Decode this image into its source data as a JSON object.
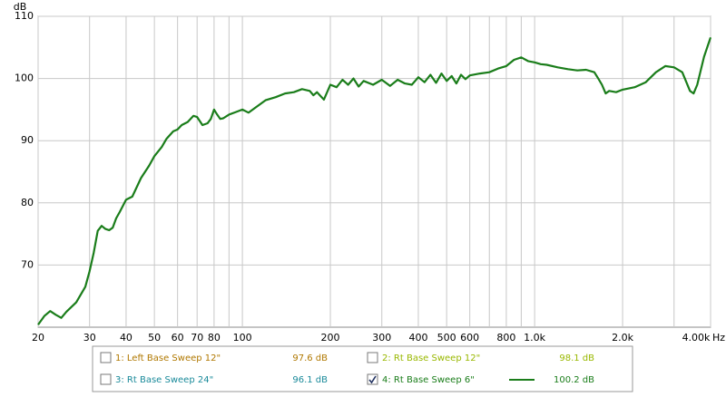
{
  "chart_data": {
    "type": "line",
    "y_unit": "dB",
    "x_unit": "Hz",
    "log_x": true,
    "grid": true,
    "xlim": [
      20,
      4000
    ],
    "ylim": [
      60,
      110
    ],
    "yticks": [
      70,
      80,
      90,
      100,
      110
    ],
    "xticks": [
      20,
      30,
      40,
      50,
      60,
      70,
      80,
      100,
      200,
      300,
      400,
      500,
      600,
      800,
      {
        "value": 1000,
        "label": "1.0k"
      },
      {
        "value": 2000,
        "label": "2.0k"
      },
      {
        "value": 4000,
        "label": "4.00k"
      }
    ],
    "x_minor_grid": [
      90,
      700,
      900,
      3000
    ],
    "x": [
      20,
      21,
      22,
      23,
      24,
      25,
      27,
      29,
      30,
      31,
      32,
      33,
      34,
      35,
      36,
      37,
      38,
      40,
      42,
      45,
      48,
      50,
      53,
      55,
      58,
      60,
      62,
      65,
      68,
      70,
      73,
      76,
      78,
      80,
      82,
      84,
      86,
      90,
      95,
      100,
      105,
      110,
      120,
      130,
      140,
      150,
      160,
      170,
      175,
      180,
      190,
      200,
      210,
      220,
      230,
      240,
      250,
      260,
      280,
      300,
      320,
      340,
      360,
      380,
      400,
      420,
      440,
      460,
      480,
      500,
      520,
      540,
      560,
      580,
      600,
      650,
      700,
      750,
      800,
      850,
      900,
      950,
      1000,
      1050,
      1100,
      1200,
      1300,
      1400,
      1500,
      1600,
      1650,
      1700,
      1750,
      1800,
      1900,
      2000,
      2200,
      2400,
      2600,
      2800,
      3000,
      3200,
      3400,
      3500,
      3600,
      3800,
      4000
    ],
    "series": [
      {
        "name": "1: Left Base Sweep 12\"",
        "color": "#b07800",
        "visible": false,
        "reading": {
          "value": 97.6,
          "label": "97.6 dB"
        }
      },
      {
        "name": "2: Rt Base Sweep 12\"",
        "color": "#99b800",
        "visible": false,
        "reading": {
          "value": 98.1,
          "label": "98.1 dB"
        }
      },
      {
        "name": "3: Rt Base Sweep 24\"",
        "color": "#1a8a9a",
        "visible": false,
        "reading": {
          "value": 96.1,
          "label": "96.1 dB"
        }
      },
      {
        "name": "4: Rt Base Sweep 6\"",
        "color": "#1a7d1a",
        "visible": true,
        "reading": {
          "value": 100.2,
          "label": "100.2 dB"
        },
        "values": [
          60.4,
          61.8,
          62.6,
          62.0,
          61.5,
          62.5,
          64.0,
          66.5,
          69.0,
          72.0,
          75.5,
          76.3,
          75.8,
          75.6,
          76.0,
          77.5,
          78.5,
          80.5,
          81.0,
          84.0,
          86.0,
          87.5,
          89.0,
          90.3,
          91.5,
          91.8,
          92.5,
          93.0,
          94.0,
          93.8,
          92.5,
          92.8,
          93.5,
          95.0,
          94.2,
          93.5,
          93.6,
          94.2,
          94.6,
          95.0,
          94.5,
          95.2,
          96.5,
          97.0,
          97.6,
          97.8,
          98.3,
          98.0,
          97.3,
          97.8,
          96.6,
          99.0,
          98.6,
          99.8,
          99.0,
          100.0,
          98.7,
          99.6,
          99.0,
          99.8,
          98.8,
          99.8,
          99.2,
          99.0,
          100.2,
          99.4,
          100.6,
          99.3,
          100.8,
          99.6,
          100.4,
          99.2,
          100.6,
          99.9,
          100.5,
          100.8,
          101.0,
          101.6,
          102.0,
          103.0,
          103.4,
          102.8,
          102.6,
          102.3,
          102.2,
          101.8,
          101.5,
          101.3,
          101.4,
          101.0,
          100.0,
          99.0,
          97.6,
          98.0,
          97.8,
          98.2,
          98.6,
          99.4,
          101.0,
          102.0,
          101.8,
          101.0,
          98.0,
          97.6,
          99.0,
          103.5,
          106.6
        ]
      }
    ]
  }
}
